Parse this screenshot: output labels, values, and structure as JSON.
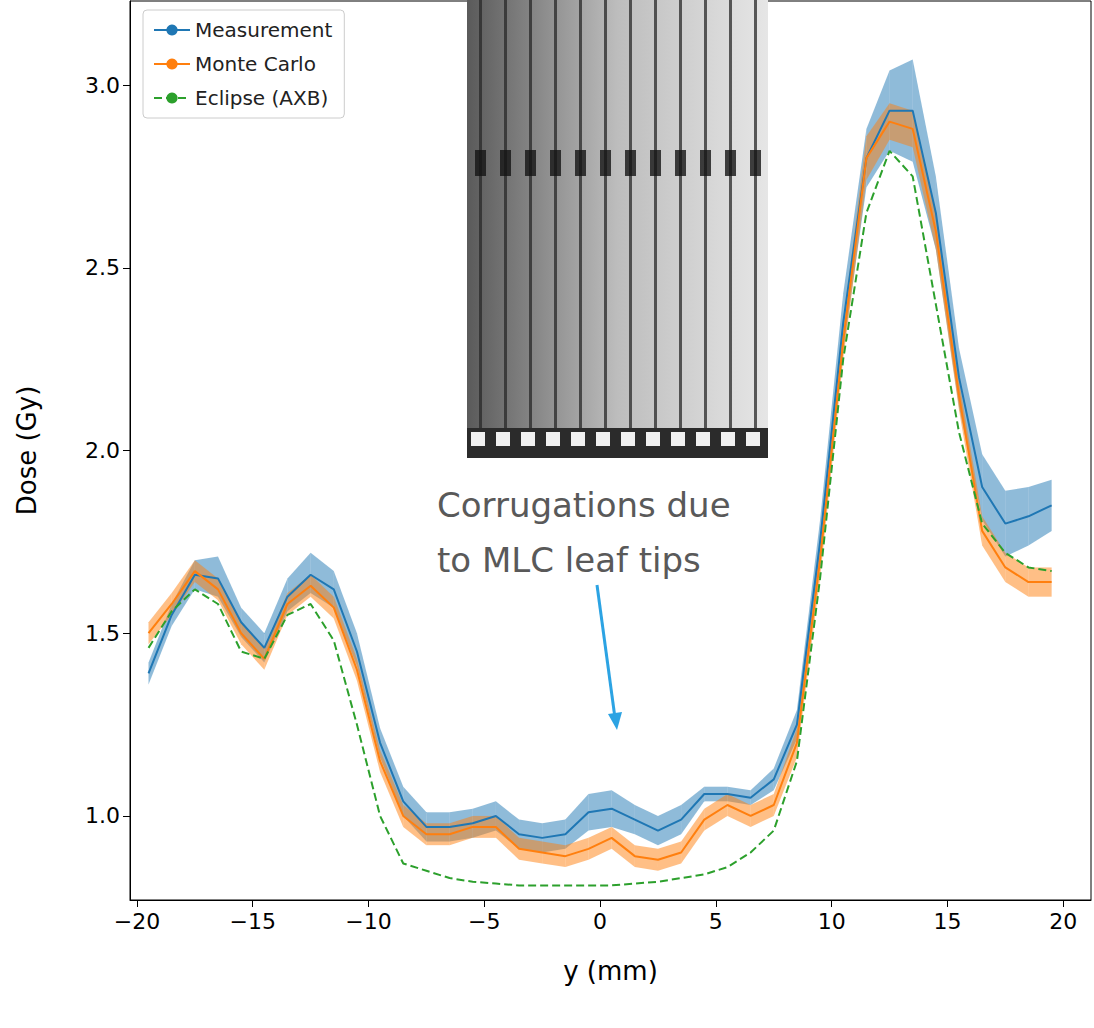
{
  "chart_data": {
    "type": "line",
    "xlabel": "y (mm)",
    "ylabel": "Dose (Gy)",
    "annotation": "Corrugations due\nto MLC leaf tips",
    "legend": "upper left",
    "grid": false,
    "xlim": [
      -20.3,
      21.2
    ],
    "ylim": [
      0.77,
      3.23
    ],
    "xticks": [
      {
        "value": -20,
        "label": "−20"
      },
      {
        "value": -15,
        "label": "−15"
      },
      {
        "value": -10,
        "label": "−10"
      },
      {
        "value": -5,
        "label": "−5"
      },
      0,
      5,
      10,
      15,
      20
    ],
    "yticks": [
      {
        "value": 1,
        "label": "1.0"
      },
      {
        "value": 1.5,
        "label": "1.5"
      },
      {
        "value": 2,
        "label": "2.0"
      },
      {
        "value": 2.5,
        "label": "2.5"
      },
      {
        "value": 3,
        "label": "3.0"
      }
    ],
    "x": [
      -19.5,
      -18.5,
      -17.5,
      -16.5,
      -15.5,
      -14.5,
      -13.5,
      -12.5,
      -11.5,
      -10.5,
      -9.5,
      -8.5,
      -7.5,
      -6.5,
      -5.5,
      -4.5,
      -3.5,
      -2.5,
      -1.5,
      -0.5,
      0.5,
      1.5,
      2.5,
      3.5,
      4.5,
      5.5,
      6.5,
      7.5,
      8.5,
      9.5,
      10.5,
      11.5,
      12.5,
      13.5,
      14.5,
      15.5,
      16.5,
      17.5,
      18.5,
      19.5
    ],
    "series": [
      {
        "name": "Measurement",
        "color": "#1f77b4",
        "line_style": "solid",
        "values": [
          1.39,
          1.55,
          1.66,
          1.65,
          1.53,
          1.46,
          1.6,
          1.66,
          1.62,
          1.45,
          1.2,
          1.04,
          0.97,
          0.97,
          0.98,
          1.0,
          0.95,
          0.94,
          0.95,
          1.01,
          1.02,
          0.99,
          0.96,
          0.99,
          1.06,
          1.06,
          1.05,
          1.1,
          1.25,
          1.75,
          2.35,
          2.8,
          2.93,
          2.93,
          2.65,
          2.2,
          1.9,
          1.8,
          1.82,
          1.85
        ],
        "lower": [
          1.36,
          1.52,
          1.62,
          1.6,
          1.49,
          1.42,
          1.56,
          1.61,
          1.57,
          1.41,
          1.16,
          1.0,
          0.93,
          0.93,
          0.94,
          0.96,
          0.91,
          0.9,
          0.91,
          0.96,
          0.97,
          0.95,
          0.92,
          0.95,
          1.04,
          1.04,
          1.03,
          1.07,
          1.21,
          1.69,
          2.27,
          2.72,
          2.82,
          2.79,
          2.55,
          2.12,
          1.81,
          1.71,
          1.74,
          1.78
        ],
        "upper": [
          1.42,
          1.58,
          1.7,
          1.71,
          1.57,
          1.5,
          1.65,
          1.72,
          1.67,
          1.5,
          1.24,
          1.08,
          1.01,
          1.01,
          1.02,
          1.04,
          0.99,
          0.98,
          0.99,
          1.06,
          1.07,
          1.03,
          1.0,
          1.03,
          1.08,
          1.08,
          1.07,
          1.13,
          1.29,
          1.81,
          2.43,
          2.88,
          3.04,
          3.07,
          2.75,
          2.28,
          1.99,
          1.89,
          1.9,
          1.92
        ]
      },
      {
        "name": "Monte Carlo",
        "color": "#ff7f0e",
        "line_style": "solid",
        "values": [
          1.5,
          1.58,
          1.67,
          1.62,
          1.5,
          1.43,
          1.58,
          1.63,
          1.57,
          1.4,
          1.15,
          1.0,
          0.95,
          0.95,
          0.97,
          0.97,
          0.91,
          0.9,
          0.89,
          0.91,
          0.94,
          0.89,
          0.88,
          0.9,
          0.99,
          1.03,
          1.0,
          1.03,
          1.2,
          1.7,
          2.3,
          2.8,
          2.9,
          2.88,
          2.6,
          2.15,
          1.78,
          1.68,
          1.64,
          1.64
        ],
        "lower": [
          1.47,
          1.55,
          1.64,
          1.59,
          1.47,
          1.4,
          1.55,
          1.6,
          1.54,
          1.37,
          1.12,
          0.97,
          0.92,
          0.92,
          0.94,
          0.94,
          0.88,
          0.87,
          0.86,
          0.88,
          0.91,
          0.86,
          0.85,
          0.87,
          0.96,
          1.0,
          0.97,
          1.0,
          1.16,
          1.65,
          2.25,
          2.74,
          2.85,
          2.83,
          2.55,
          2.11,
          1.74,
          1.64,
          1.6,
          1.6
        ],
        "upper": [
          1.53,
          1.61,
          1.7,
          1.65,
          1.53,
          1.46,
          1.61,
          1.66,
          1.6,
          1.43,
          1.18,
          1.03,
          0.98,
          0.98,
          1.0,
          1.0,
          0.94,
          0.93,
          0.92,
          0.94,
          0.97,
          0.92,
          0.91,
          0.93,
          1.02,
          1.06,
          1.03,
          1.06,
          1.24,
          1.75,
          2.35,
          2.86,
          2.95,
          2.93,
          2.65,
          2.19,
          1.82,
          1.72,
          1.68,
          1.68
        ]
      },
      {
        "name": "Eclipse (AXB)",
        "color": "#2ca02c",
        "line_style": "dashed",
        "values": [
          1.46,
          1.56,
          1.62,
          1.58,
          1.45,
          1.43,
          1.55,
          1.58,
          1.48,
          1.25,
          1.0,
          0.87,
          0.85,
          0.83,
          0.82,
          0.815,
          0.81,
          0.81,
          0.81,
          0.81,
          0.81,
          0.815,
          0.82,
          0.83,
          0.84,
          0.86,
          0.9,
          0.96,
          1.15,
          1.65,
          2.25,
          2.65,
          2.82,
          2.75,
          2.4,
          2.05,
          1.8,
          1.72,
          1.68,
          1.67
        ]
      }
    ]
  }
}
